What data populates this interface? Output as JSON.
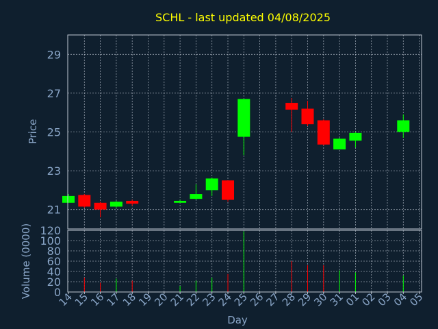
{
  "chart_data": {
    "type": "candlestick",
    "title": "SCHL - last updated 04/08/2025",
    "price_panel": {
      "ylabel": "Price",
      "ylim": [
        20,
        30
      ],
      "yticks": [
        21,
        23,
        25,
        27,
        29
      ]
    },
    "volume_panel": {
      "ylabel": "Volume (0000)",
      "ylim": [
        0,
        120
      ],
      "yticks": [
        0,
        20,
        40,
        60,
        80,
        100,
        120
      ]
    },
    "xlabel": "Day",
    "x_ticks": [
      "14",
      "15",
      "16",
      "17",
      "18",
      "19",
      "20",
      "21",
      "22",
      "23",
      "24",
      "25",
      "26",
      "27",
      "28",
      "29",
      "30",
      "31",
      "01",
      "02",
      "03",
      "04",
      "05"
    ],
    "candles": [
      {
        "day": "14",
        "open": 21.35,
        "high": 21.8,
        "low": 21.35,
        "close": 21.7,
        "volume": 0
      },
      {
        "day": "15",
        "open": 21.75,
        "high": 21.8,
        "low": 21.1,
        "close": 21.15,
        "volume": 28
      },
      {
        "day": "16",
        "open": 21.35,
        "high": 21.4,
        "low": 20.6,
        "close": 21.0,
        "volume": 18
      },
      {
        "day": "17",
        "open": 21.15,
        "high": 21.45,
        "low": 21.1,
        "close": 21.4,
        "volume": 26
      },
      {
        "day": "18",
        "open": 21.45,
        "high": 21.5,
        "low": 21.2,
        "close": 21.3,
        "volume": 22
      },
      {
        "day": "21",
        "open": 21.35,
        "high": 21.5,
        "low": 21.35,
        "close": 21.45,
        "volume": 12
      },
      {
        "day": "22",
        "open": 21.55,
        "high": 22.3,
        "low": 21.5,
        "close": 21.8,
        "volume": 22
      },
      {
        "day": "23",
        "open": 22.0,
        "high": 22.65,
        "low": 21.7,
        "close": 22.6,
        "volume": 28
      },
      {
        "day": "24",
        "open": 22.5,
        "high": 22.5,
        "low": 21.4,
        "close": 21.5,
        "volume": 35
      },
      {
        "day": "25",
        "open": 24.75,
        "high": 26.7,
        "low": 23.8,
        "close": 26.7,
        "volume": 118
      },
      {
        "day": "28",
        "open": 26.5,
        "high": 26.75,
        "low": 25.0,
        "close": 26.15,
        "volume": 60
      },
      {
        "day": "29",
        "open": 26.2,
        "high": 26.6,
        "low": 25.3,
        "close": 25.4,
        "volume": 52
      },
      {
        "day": "30",
        "open": 25.6,
        "high": 25.65,
        "low": 24.3,
        "close": 24.35,
        "volume": 52
      },
      {
        "day": "31",
        "open": 24.1,
        "high": 24.7,
        "low": 24.1,
        "close": 24.65,
        "volume": 42
      },
      {
        "day": "01",
        "open": 24.55,
        "high": 25.0,
        "low": 24.2,
        "close": 24.95,
        "volume": 38
      },
      {
        "day": "04",
        "open": 25.0,
        "high": 25.9,
        "low": 24.7,
        "close": 25.6,
        "volume": 32
      }
    ],
    "grid": true,
    "colors": {
      "background": "#0f1f2e",
      "up": "#00ff00",
      "down": "#ff0000",
      "frame": "#c0c8d4",
      "grid": "#c0c8d4",
      "tick_text": "#8aa6c8",
      "axis_title": "#8aa6c8",
      "title": "#ffff00"
    }
  }
}
